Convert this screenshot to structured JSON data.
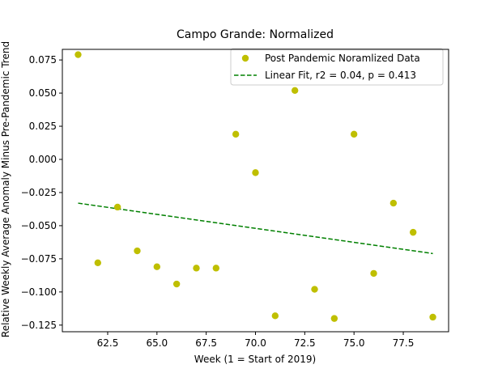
{
  "chart_data": {
    "type": "scatter",
    "title": "Campo Grande: Normalized",
    "xlabel": "Week (1 = Start of 2019)",
    "ylabel": "Relative Weekly Average Anomaly Minus Pre-Pandemic Trend",
    "xlim": [
      60.2,
      79.8
    ],
    "ylim": [
      -0.13,
      0.083
    ],
    "xticks": [
      62.5,
      65.0,
      67.5,
      70.0,
      72.5,
      75.0,
      77.5
    ],
    "xtick_labels": [
      "62.5",
      "65.0",
      "67.5",
      "70.0",
      "72.5",
      "75.0",
      "77.5"
    ],
    "yticks": [
      0.075,
      0.05,
      0.025,
      0.0,
      -0.025,
      -0.05,
      -0.075,
      -0.1,
      -0.125
    ],
    "ytick_labels": [
      "0.075",
      "0.050",
      "0.025",
      "0.000",
      "−0.025",
      "−0.050",
      "−0.075",
      "−0.100",
      "−0.125"
    ],
    "legend_position": "top-right",
    "series": [
      {
        "name": "Post Pandemic Noramlized Data",
        "kind": "scatter",
        "color": "#bfbf00",
        "x": [
          61,
          62,
          63,
          64,
          65,
          66,
          67,
          68,
          69,
          70,
          71,
          72,
          73,
          74,
          75,
          76,
          77,
          78,
          79
        ],
        "y": [
          0.079,
          -0.078,
          -0.036,
          -0.069,
          -0.081,
          -0.094,
          -0.082,
          -0.082,
          0.019,
          -0.01,
          -0.118,
          0.052,
          -0.098,
          -0.12,
          0.019,
          -0.086,
          -0.033,
          -0.055,
          -0.119
        ]
      },
      {
        "name": "Linear Fit, r2 = 0.04, p = 0.413",
        "kind": "line",
        "style": "dashed",
        "color": "#008000",
        "x": [
          61,
          79
        ],
        "y": [
          -0.033,
          -0.071
        ]
      }
    ]
  }
}
